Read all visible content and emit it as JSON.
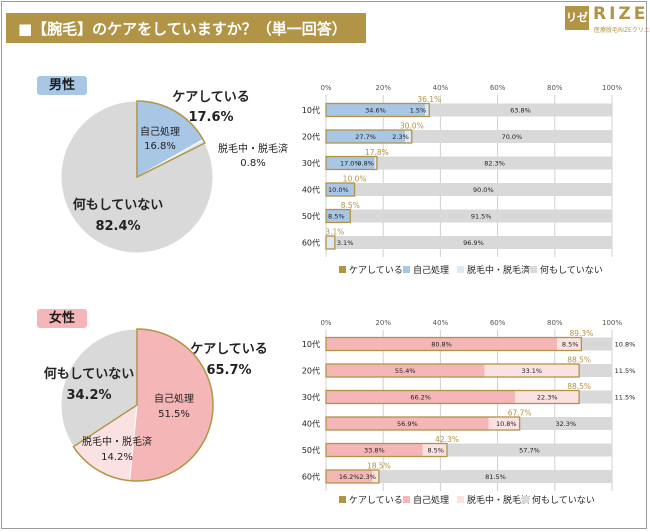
{
  "header": {
    "title": "■【腕毛】のケアをしていますか？（単一回答）"
  },
  "logo": {
    "mark": "リゼ",
    "word": "RIZE",
    "tagline": "医療脱毛RIZEクリニック"
  },
  "colors": {
    "care_total": "#b29447",
    "self_male": "#a8c6e6",
    "self_female": "#f4b6b6",
    "during_male": "#dde9f5",
    "during_female": "#fbe2e2",
    "nothing": "#d9d9d9",
    "grid": "#d0d0d0"
  },
  "male": {
    "badge": "男性",
    "pie": {
      "care_label": "ケアしている",
      "care_value": "17.6%",
      "self_label": "自己処理",
      "self_value": "16.8%",
      "during_label": "脱毛中・脱毛済",
      "during_value": "0.8%",
      "nothing_label": "何もしていない",
      "nothing_value": "82.4%"
    }
  },
  "female": {
    "badge": "女性",
    "pie": {
      "care_label": "ケアしている",
      "care_value": "65.7%",
      "self_label": "自己処理",
      "self_value": "51.5%",
      "during_label": "脱毛中・脱毛済",
      "during_value": "14.2%",
      "nothing_label": "何もしていない",
      "nothing_value": "34.2%"
    }
  },
  "legend": {
    "care": "ケアしている",
    "self": "自己処理",
    "during": "脱毛中・脱毛済",
    "nothing": "何もしていない"
  },
  "chart_data": [
    {
      "type": "pie",
      "slices": [
        {
          "name": "自己処理",
          "value": 16.8
        },
        {
          "name": "脱毛中・脱毛済",
          "value": 0.8
        },
        {
          "name": "何もしていない",
          "value": 82.4
        }
      ],
      "group": {
        "name": "ケアしている",
        "value": 17.6
      }
    },
    {
      "type": "bar",
      "orientation": "horizontal",
      "stacked": true,
      "categories": [
        "10代",
        "20代",
        "30代",
        "40代",
        "50代",
        "60代"
      ],
      "series": [
        {
          "name": "自己処理",
          "values": [
            34.6,
            27.7,
            17.0,
            10.0,
            8.5,
            0.0
          ]
        },
        {
          "name": "脱毛中・脱毛済",
          "values": [
            1.5,
            2.3,
            0.8,
            0.0,
            0.0,
            3.1
          ]
        },
        {
          "name": "何もしていない",
          "values": [
            63.8,
            70.0,
            82.3,
            90.0,
            91.5,
            96.9
          ]
        }
      ],
      "care_totals": {
        "name": "ケアしている",
        "values": [
          36.1,
          30.0,
          17.8,
          10.0,
          8.5,
          3.1
        ]
      },
      "labels": {
        "self": [
          "34.6%",
          "27.7%",
          "17.0%",
          "10.0%",
          "8.5%",
          ""
        ],
        "during": [
          "1.5%",
          "2.3%",
          "0.8%",
          "",
          "",
          "3.1%"
        ],
        "nothing": [
          "63.8%",
          "70.0%",
          "82.3%",
          "90.0%",
          "91.5%",
          "96.9%"
        ],
        "care": [
          "36.1%",
          "30.0%",
          "17.8%",
          "10.0%",
          "8.5%",
          "3.1%"
        ]
      },
      "xticks": [
        "0%",
        "20%",
        "40%",
        "60%",
        "80%",
        "100%"
      ],
      "xlim": [
        0,
        100
      ],
      "grid": true,
      "legend": "bottom"
    },
    {
      "type": "pie",
      "slices": [
        {
          "name": "自己処理",
          "value": 51.5
        },
        {
          "name": "脱毛中・脱毛済",
          "value": 14.2
        },
        {
          "name": "何もしていない",
          "value": 34.2
        }
      ],
      "group": {
        "name": "ケアしている",
        "value": 65.7
      }
    },
    {
      "type": "bar",
      "orientation": "horizontal",
      "stacked": true,
      "categories": [
        "10代",
        "20代",
        "30代",
        "40代",
        "50代",
        "60代"
      ],
      "series": [
        {
          "name": "自己処理",
          "values": [
            80.8,
            55.4,
            66.2,
            56.9,
            33.8,
            16.2
          ]
        },
        {
          "name": "脱毛中・脱毛済",
          "values": [
            8.5,
            33.1,
            22.3,
            10.8,
            8.5,
            2.3
          ]
        },
        {
          "name": "何もしていない",
          "values": [
            10.8,
            11.5,
            11.5,
            32.3,
            57.7,
            81.5
          ]
        }
      ],
      "care_totals": {
        "name": "ケアしている",
        "values": [
          89.3,
          88.5,
          88.5,
          67.7,
          42.3,
          18.5
        ]
      },
      "labels": {
        "self": [
          "80.8%",
          "55.4%",
          "66.2%",
          "56.9%",
          "33.8%",
          "16.2%"
        ],
        "during": [
          "8.5%",
          "33.1%",
          "22.3%",
          "10.8%",
          "8.5%",
          "2.3%"
        ],
        "nothing": [
          "10.8%",
          "11.5%",
          "11.5%",
          "32.3%",
          "57.7%",
          "81.5%"
        ],
        "care": [
          "89.3%",
          "88.5%",
          "88.5%",
          "67.7%",
          "42.3%",
          "18.5%"
        ]
      },
      "xticks": [
        "0%",
        "20%",
        "40%",
        "60%",
        "80%",
        "100%"
      ],
      "xlim": [
        0,
        100
      ],
      "grid": true,
      "legend": "bottom"
    }
  ]
}
